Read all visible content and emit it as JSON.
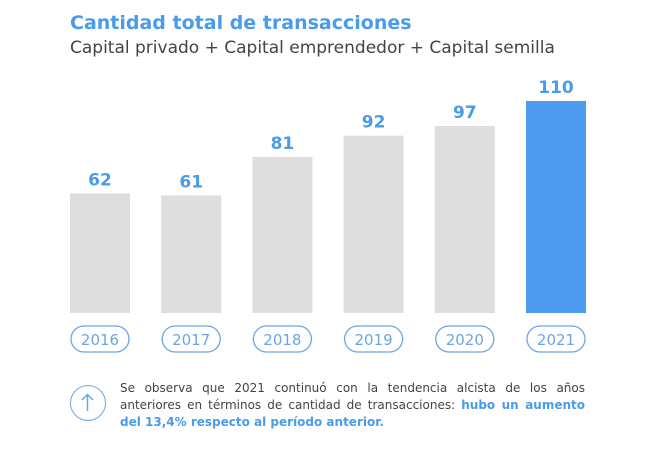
{
  "title": "Cantidad total de transacciones",
  "subtitle": "Capital privado + Capital emprendedor + Capital semilla",
  "colors": {
    "bar": "#dedede",
    "highlight_bar": "#4f9bf0",
    "accent": "#4a9bea"
  },
  "chart_data": {
    "type": "bar",
    "title": "Cantidad total de transacciones",
    "subtitle": "Capital privado + Capital emprendedor + Capital semilla",
    "categories": [
      "2016",
      "2017",
      "2018",
      "2019",
      "2020",
      "2021"
    ],
    "values": [
      62,
      61,
      81,
      92,
      97,
      110
    ],
    "highlight_index": 5,
    "xlabel": "",
    "ylabel": "",
    "ylim": [
      0,
      110
    ],
    "grid": false,
    "legend": "none"
  },
  "note": {
    "text": "Se observa que 2021 continuó con la tendencia alcista de los años anteriores en términos de cantidad de transacciones: ",
    "highlight": "hubo un aumento del 13,4% respecto al período anterior.",
    "icon": "arrow-up-icon"
  }
}
